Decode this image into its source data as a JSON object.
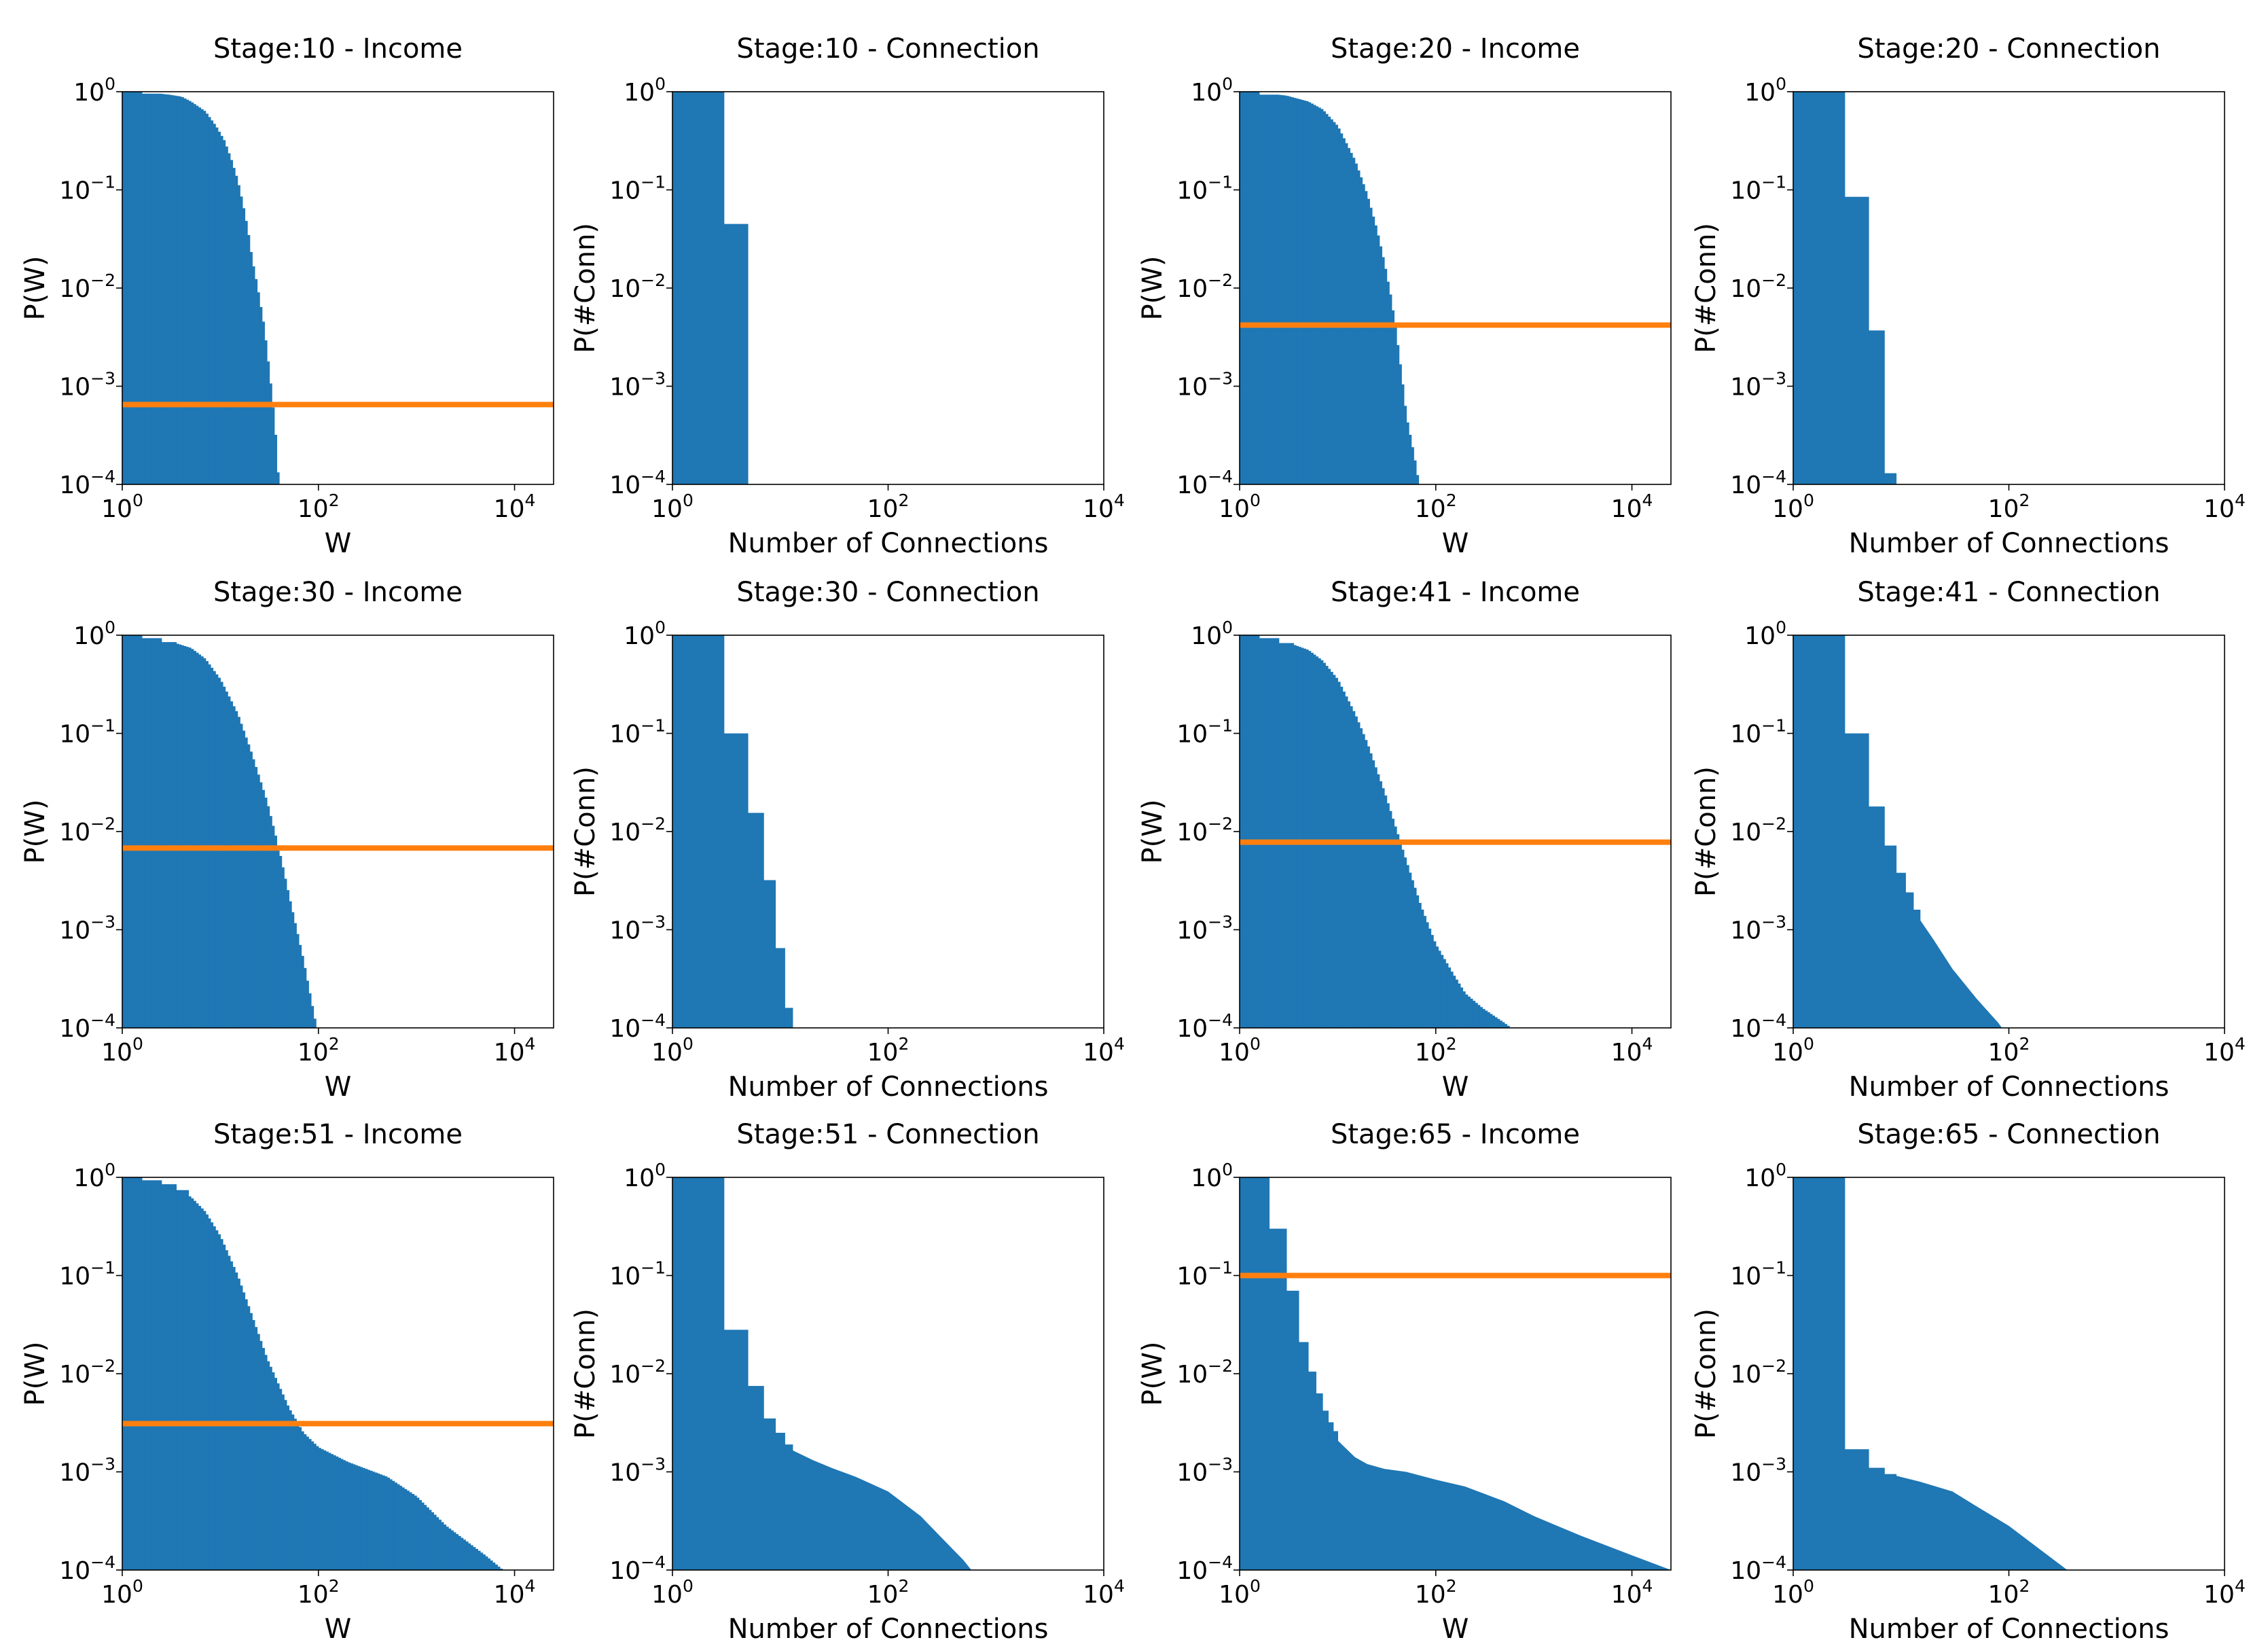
{
  "figure": {
    "type": "bar",
    "layout": "3x4 grid of log-log histograms"
  },
  "colors": {
    "hist": "#1f77b4",
    "hline": "#ff7f0e",
    "frame": "#000000"
  },
  "tick_labels": {
    "x": [
      {
        "base": "10",
        "exp": "0"
      },
      {
        "base": "10",
        "exp": "2"
      },
      {
        "base": "10",
        "exp": "4"
      }
    ],
    "y": [
      {
        "base": "10",
        "exp": "0"
      },
      {
        "base": "10",
        "exp": "−1"
      },
      {
        "base": "10",
        "exp": "−2"
      },
      {
        "base": "10",
        "exp": "−3"
      },
      {
        "base": "10",
        "exp": "−4"
      }
    ]
  },
  "chart_data": [
    {
      "type": "bar",
      "title": "Stage:10 - Income",
      "xlabel": "W",
      "ylabel": "P(W)",
      "xscale": "log",
      "yscale": "log",
      "xlim": [
        1,
        25000
      ],
      "ylim": [
        0.0001,
        1
      ],
      "hline": 0.00065,
      "exp_steps": [
        0,
        0.02
      ],
      "bins_per_decade": 40,
      "points": [
        [
          1,
          0
        ],
        [
          2,
          -0.01
        ],
        [
          3,
          -0.03
        ],
        [
          4,
          -0.05
        ],
        [
          5,
          -0.1
        ],
        [
          7,
          -0.2
        ],
        [
          9,
          -0.35
        ],
        [
          11,
          -0.5
        ],
        [
          13,
          -0.7
        ],
        [
          15,
          -0.9
        ],
        [
          17,
          -1.15
        ],
        [
          19,
          -1.4
        ],
        [
          21,
          -1.7
        ],
        [
          24,
          -2.0
        ],
        [
          28,
          -2.4
        ],
        [
          32,
          -2.9
        ],
        [
          36,
          -3.4
        ],
        [
          40,
          -4.1
        ]
      ]
    },
    {
      "type": "bar",
      "title": "Stage:10 - Connection",
      "xlabel": "Number of Connections",
      "ylabel": "P(#Conn)",
      "xscale": "log",
      "yscale": "log",
      "xlim": [
        1,
        10000
      ],
      "ylim": [
        0.0001,
        1
      ],
      "bars": [
        {
          "x0": 1,
          "x1": 3,
          "value": 1.0
        },
        {
          "x0": 3,
          "x1": 5,
          "value": 0.045
        }
      ]
    },
    {
      "type": "bar",
      "title": "Stage:20 - Income",
      "xlabel": "W",
      "ylabel": "P(W)",
      "xscale": "log",
      "yscale": "log",
      "xlim": [
        1,
        25000
      ],
      "ylim": [
        0.0001,
        1
      ],
      "hline": 0.0042,
      "exp_steps": [
        0,
        0.03
      ],
      "bins_per_decade": 40,
      "points": [
        [
          1,
          0
        ],
        [
          2,
          -0.02
        ],
        [
          3,
          -0.04
        ],
        [
          5,
          -0.1
        ],
        [
          7,
          -0.18
        ],
        [
          10,
          -0.35
        ],
        [
          15,
          -0.7
        ],
        [
          20,
          -1.05
        ],
        [
          25,
          -1.4
        ],
        [
          30,
          -1.75
        ],
        [
          35,
          -2.1
        ],
        [
          40,
          -2.5
        ],
        [
          45,
          -2.9
        ],
        [
          50,
          -3.3
        ],
        [
          60,
          -3.7
        ],
        [
          70,
          -4.1
        ]
      ]
    },
    {
      "type": "bar",
      "title": "Stage:20 - Connection",
      "xlabel": "Number of Connections",
      "ylabel": "P(#Conn)",
      "xscale": "log",
      "yscale": "log",
      "xlim": [
        1,
        10000
      ],
      "ylim": [
        0.0001,
        1
      ],
      "bars": [
        {
          "x0": 1,
          "x1": 3,
          "value": 1.0
        },
        {
          "x0": 3,
          "x1": 5,
          "value": 0.085
        },
        {
          "x0": 5,
          "x1": 7,
          "value": 0.0037
        },
        {
          "x0": 7,
          "x1": 9,
          "value": 0.00013
        }
      ]
    },
    {
      "type": "bar",
      "title": "Stage:30 - Income",
      "xlabel": "W",
      "ylabel": "P(W)",
      "xscale": "log",
      "yscale": "log",
      "xlim": [
        1,
        25000
      ],
      "ylim": [
        0.0001,
        1
      ],
      "hline": 0.0068,
      "exp_steps": [
        0,
        0.03,
        0.07
      ],
      "bins_per_decade": 40,
      "points": [
        [
          1,
          0
        ],
        [
          2,
          -0.03
        ],
        [
          3,
          -0.06
        ],
        [
          5,
          -0.13
        ],
        [
          7,
          -0.24
        ],
        [
          10,
          -0.45
        ],
        [
          15,
          -0.8
        ],
        [
          20,
          -1.15
        ],
        [
          30,
          -1.7
        ],
        [
          40,
          -2.2
        ],
        [
          50,
          -2.65
        ],
        [
          70,
          -3.3
        ],
        [
          100,
          -4.1
        ]
      ]
    },
    {
      "type": "bar",
      "title": "Stage:30 - Connection",
      "xlabel": "Number of Connections",
      "ylabel": "P(#Conn)",
      "xscale": "log",
      "yscale": "log",
      "xlim": [
        1,
        10000
      ],
      "ylim": [
        0.0001,
        1
      ],
      "bars": [
        {
          "x0": 1,
          "x1": 3,
          "value": 1.0
        },
        {
          "x0": 3,
          "x1": 5,
          "value": 0.1
        },
        {
          "x0": 5,
          "x1": 7,
          "value": 0.0155
        },
        {
          "x0": 7,
          "x1": 9,
          "value": 0.0032
        },
        {
          "x0": 9,
          "x1": 11,
          "value": 0.00065
        },
        {
          "x0": 11,
          "x1": 13,
          "value": 0.00016
        }
      ]
    },
    {
      "type": "bar",
      "title": "Stage:41 - Income",
      "xlabel": "W",
      "ylabel": "P(W)",
      "xscale": "log",
      "yscale": "log",
      "xlim": [
        1,
        25000
      ],
      "ylim": [
        0.0001,
        1
      ],
      "hline": 0.0078,
      "exp_steps": [
        0,
        0.03,
        0.08
      ],
      "bins_per_decade": 40,
      "points": [
        [
          1,
          0
        ],
        [
          2,
          -0.03
        ],
        [
          3,
          -0.07
        ],
        [
          5,
          -0.15
        ],
        [
          7,
          -0.26
        ],
        [
          10,
          -0.45
        ],
        [
          15,
          -0.8
        ],
        [
          20,
          -1.1
        ],
        [
          30,
          -1.6
        ],
        [
          50,
          -2.3
        ],
        [
          70,
          -2.75
        ],
        [
          100,
          -3.15
        ],
        [
          150,
          -3.45
        ],
        [
          200,
          -3.65
        ],
        [
          300,
          -3.8
        ],
        [
          500,
          -3.95
        ],
        [
          800,
          -4.1
        ]
      ]
    },
    {
      "type": "bar",
      "title": "Stage:41 - Connection",
      "xlabel": "Number of Connections",
      "ylabel": "P(#Conn)",
      "xscale": "log",
      "yscale": "log",
      "xlim": [
        1,
        10000
      ],
      "ylim": [
        0.0001,
        1
      ],
      "bars": [
        {
          "x0": 1,
          "x1": 3,
          "value": 1.0
        },
        {
          "x0": 3,
          "x1": 5,
          "value": 0.1
        },
        {
          "x0": 5,
          "x1": 7,
          "value": 0.018
        },
        {
          "x0": 7,
          "x1": 9,
          "value": 0.0072
        },
        {
          "x0": 9,
          "x1": 11,
          "value": 0.0038
        },
        {
          "x0": 11,
          "x1": 13,
          "value": 0.0024
        },
        {
          "x0": 13,
          "x1": 15,
          "value": 0.0016
        }
      ],
      "tail": [
        [
          15,
          -2.9
        ],
        [
          20,
          -3.1
        ],
        [
          30,
          -3.4
        ],
        [
          50,
          -3.7
        ],
        [
          80,
          -3.95
        ],
        [
          100,
          -4.1
        ]
      ]
    },
    {
      "type": "bar",
      "title": "Stage:51 - Income",
      "xlabel": "W",
      "ylabel": "P(W)",
      "xscale": "log",
      "yscale": "log",
      "xlim": [
        1,
        25000
      ],
      "ylim": [
        0.0001,
        1
      ],
      "hline": 0.0031,
      "exp_steps": [
        0,
        0.03,
        0.07,
        0.13
      ],
      "bins_per_decade": 40,
      "points": [
        [
          1,
          0
        ],
        [
          2,
          -0.03
        ],
        [
          3,
          -0.08
        ],
        [
          5,
          -0.2
        ],
        [
          7,
          -0.35
        ],
        [
          10,
          -0.6
        ],
        [
          15,
          -1.0
        ],
        [
          20,
          -1.35
        ],
        [
          30,
          -1.85
        ],
        [
          50,
          -2.35
        ],
        [
          70,
          -2.6
        ],
        [
          100,
          -2.75
        ],
        [
          200,
          -2.9
        ],
        [
          500,
          -3.05
        ],
        [
          1000,
          -3.25
        ],
        [
          2000,
          -3.55
        ],
        [
          5000,
          -3.85
        ],
        [
          10000,
          -4.1
        ]
      ]
    },
    {
      "type": "bar",
      "title": "Stage:51 - Connection",
      "xlabel": "Number of Connections",
      "ylabel": "P(#Conn)",
      "xscale": "log",
      "yscale": "log",
      "xlim": [
        1,
        10000
      ],
      "ylim": [
        0.0001,
        1
      ],
      "bars": [
        {
          "x0": 1,
          "x1": 3,
          "value": 1.0
        },
        {
          "x0": 3,
          "x1": 5,
          "value": 0.028
        },
        {
          "x0": 5,
          "x1": 7,
          "value": 0.0075
        },
        {
          "x0": 7,
          "x1": 9,
          "value": 0.0035
        },
        {
          "x0": 9,
          "x1": 11,
          "value": 0.0025
        },
        {
          "x0": 11,
          "x1": 13,
          "value": 0.0019
        }
      ],
      "tail": [
        [
          13,
          -2.78
        ],
        [
          20,
          -2.88
        ],
        [
          30,
          -2.96
        ],
        [
          50,
          -3.05
        ],
        [
          100,
          -3.2
        ],
        [
          200,
          -3.45
        ],
        [
          300,
          -3.65
        ],
        [
          500,
          -3.9
        ],
        [
          700,
          -4.1
        ]
      ]
    },
    {
      "type": "bar",
      "title": "Stage:65 - Income",
      "xlabel": "W",
      "ylabel": "P(W)",
      "xscale": "log",
      "yscale": "log",
      "xlim": [
        1,
        25000
      ],
      "ylim": [
        0.0001,
        1
      ],
      "hline": 0.1,
      "exp_steps": [
        0,
        0.03,
        0.07
      ],
      "bars": [
        {
          "x0": 1,
          "x1": 2,
          "value": 1.0
        },
        {
          "x0": 2,
          "x1": 3,
          "value": 0.3
        },
        {
          "x0": 3,
          "x1": 4,
          "value": 0.07
        },
        {
          "x0": 4,
          "x1": 5,
          "value": 0.021
        },
        {
          "x0": 5,
          "x1": 6,
          "value": 0.0105
        },
        {
          "x0": 6,
          "x1": 7,
          "value": 0.0063
        },
        {
          "x0": 7,
          "x1": 8,
          "value": 0.0042
        },
        {
          "x0": 8,
          "x1": 9,
          "value": 0.0032
        },
        {
          "x0": 9,
          "x1": 10,
          "value": 0.0026
        }
      ],
      "tail": [
        [
          10,
          -2.68
        ],
        [
          15,
          -2.85
        ],
        [
          20,
          -2.92
        ],
        [
          30,
          -2.97
        ],
        [
          50,
          -3.0
        ],
        [
          100,
          -3.08
        ],
        [
          200,
          -3.15
        ],
        [
          500,
          -3.3
        ],
        [
          1000,
          -3.45
        ],
        [
          3000,
          -3.65
        ],
        [
          10000,
          -3.85
        ],
        [
          25000,
          -4.0
        ]
      ]
    },
    {
      "type": "bar",
      "title": "Stage:65 - Connection",
      "xlabel": "Number of Connections",
      "ylabel": "P(#Conn)",
      "xscale": "log",
      "yscale": "log",
      "xlim": [
        1,
        10000
      ],
      "ylim": [
        0.0001,
        1
      ],
      "bars": [
        {
          "x0": 1,
          "x1": 3,
          "value": 1.0
        },
        {
          "x0": 3,
          "x1": 5,
          "value": 0.0017
        },
        {
          "x0": 5,
          "x1": 7,
          "value": 0.0011
        },
        {
          "x0": 7,
          "x1": 9,
          "value": 0.00095
        }
      ],
      "tail": [
        [
          9,
          -3.04
        ],
        [
          15,
          -3.1
        ],
        [
          30,
          -3.2
        ],
        [
          50,
          -3.35
        ],
        [
          100,
          -3.55
        ],
        [
          200,
          -3.8
        ],
        [
          400,
          -4.05
        ],
        [
          500,
          -4.1
        ]
      ]
    }
  ]
}
